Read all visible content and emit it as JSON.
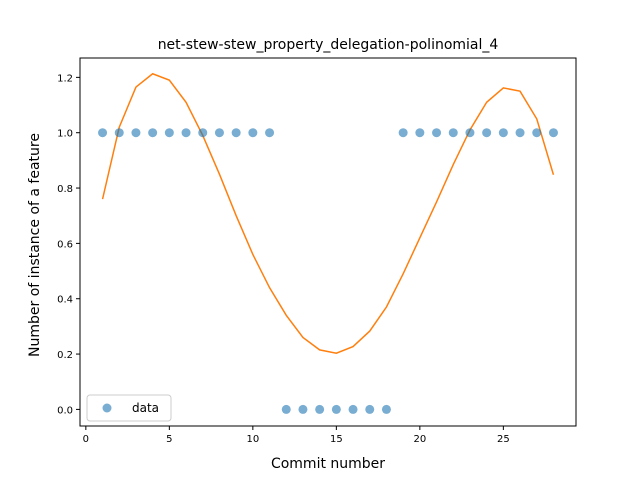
{
  "chart_data": {
    "type": "scatter",
    "title": "net-stew-stew_property_delegation-polinomial_4",
    "xlabel": "Commit number",
    "ylabel": "Number of instance of a feature",
    "xlim": [
      -0.35,
      29.35
    ],
    "ylim": [
      -0.06,
      1.27
    ],
    "xticks": [
      0,
      5,
      10,
      15,
      20,
      25
    ],
    "xtick_labels": [
      "0",
      "5",
      "10",
      "15",
      "20",
      "25"
    ],
    "yticks": [
      0.0,
      0.2,
      0.4,
      0.6,
      0.8,
      1.0,
      1.2
    ],
    "ytick_labels": [
      "0.0",
      "0.2",
      "0.4",
      "0.6",
      "0.8",
      "1.0",
      "1.2"
    ],
    "grid": false,
    "legend": {
      "position": "lower-left",
      "entries": [
        "data"
      ]
    },
    "series": [
      {
        "name": "data",
        "kind": "scatter",
        "color": "#1f77b4",
        "x": [
          1,
          2,
          3,
          4,
          5,
          6,
          7,
          8,
          9,
          10,
          11,
          12,
          13,
          14,
          15,
          16,
          17,
          18,
          19,
          20,
          21,
          22,
          23,
          24,
          25,
          26,
          27,
          28
        ],
        "y": [
          1,
          1,
          1,
          1,
          1,
          1,
          1,
          1,
          1,
          1,
          1,
          0,
          0,
          0,
          0,
          0,
          0,
          0,
          1,
          1,
          1,
          1,
          1,
          1,
          1,
          1,
          1,
          1
        ]
      },
      {
        "kind": "line",
        "color": "#ff7f0e",
        "x": [
          1,
          2,
          3,
          4,
          5,
          6,
          7,
          8,
          9,
          10,
          11,
          12,
          13,
          14,
          15,
          16,
          17,
          18,
          19,
          20,
          21,
          22,
          23,
          24,
          25,
          26,
          27,
          28
        ],
        "y": [
          0.76,
          1.02,
          1.165,
          1.213,
          1.19,
          1.11,
          0.99,
          0.85,
          0.7,
          0.56,
          0.44,
          0.34,
          0.26,
          0.215,
          0.203,
          0.227,
          0.283,
          0.37,
          0.49,
          0.62,
          0.75,
          0.885,
          1.01,
          1.11,
          1.162,
          1.15,
          1.05,
          0.848
        ]
      }
    ]
  }
}
